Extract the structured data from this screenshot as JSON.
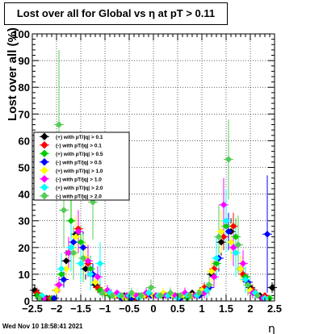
{
  "title": "Lost over all for Global vs    η at pT > 0.11",
  "footer": "Wed Nov 10 18:58:41 2021",
  "chart_data": {
    "type": "scatter",
    "xlabel": "η",
    "ylabel": "Lost over all (%)",
    "xlim": [
      -2.5,
      2.5
    ],
    "ylim": [
      0,
      100
    ],
    "x_ticks": [
      -2.5,
      -2,
      -1.5,
      -1,
      -0.5,
      0,
      0.5,
      1,
      1.5,
      2,
      2.5
    ],
    "x_tick_labels": [
      "−2.5",
      "−2",
      "−1.5",
      "−1",
      "−0.5",
      "0",
      "0.5",
      "1",
      "1.5",
      "2",
      "2.5"
    ],
    "y_ticks": [
      0,
      10,
      20,
      30,
      40,
      50,
      60,
      70,
      80,
      90,
      100
    ],
    "y_tick_labels": [
      "0",
      "10",
      "20",
      "30",
      "40",
      "50",
      "60",
      "70",
      "80",
      "90",
      "100"
    ],
    "grid": true,
    "legend_position": "center-left",
    "series": [
      {
        "name": "(+) with pT/|q| > 0.1",
        "color": "#000000",
        "marker": "diamond",
        "x": [
          -2.45,
          -2.2,
          -2.0,
          -1.8,
          -1.6,
          -1.4,
          -1.2,
          -1.0,
          -0.8,
          -0.6,
          -0.4,
          -0.2,
          0.0,
          0.2,
          0.4,
          0.6,
          0.8,
          1.0,
          1.2,
          1.4,
          1.6,
          1.8,
          2.0,
          2.2,
          2.45
        ],
        "y": [
          4,
          1,
          4,
          15,
          25,
          12,
          6,
          3,
          2,
          2,
          2,
          2,
          2,
          2,
          2,
          2,
          3,
          4,
          10,
          22,
          26,
          12,
          5,
          2,
          5
        ],
        "err": [
          2,
          1,
          2,
          4,
          5,
          4,
          2,
          1,
          1,
          1,
          1,
          1,
          1,
          1,
          1,
          1,
          1,
          2,
          3,
          5,
          5,
          4,
          2,
          1,
          2
        ]
      },
      {
        "name": "(-) with pT/|q| > 0.1",
        "color": "#ff0000",
        "marker": "diamond",
        "x": [
          -2.4,
          -2.15,
          -1.95,
          -1.75,
          -1.55,
          -1.35,
          -1.15,
          -0.95,
          -0.75,
          -0.55,
          -0.35,
          -0.15,
          0.05,
          0.25,
          0.45,
          0.65,
          0.85,
          1.05,
          1.25,
          1.45,
          1.65,
          1.85,
          2.05,
          2.3
        ],
        "y": [
          3,
          1,
          6,
          18,
          27,
          14,
          5,
          3,
          2,
          2,
          1,
          2,
          2,
          2,
          2,
          2,
          2,
          5,
          12,
          24,
          28,
          10,
          4,
          2
        ],
        "err": [
          2,
          1,
          2,
          4,
          5,
          4,
          2,
          1,
          1,
          1,
          1,
          1,
          1,
          1,
          1,
          1,
          1,
          2,
          3,
          5,
          5,
          3,
          2,
          1
        ]
      },
      {
        "name": "(+) with pT/|q| > 0.5",
        "color": "#00cc00",
        "marker": "diamond",
        "x": [
          -2.4,
          -2.1,
          -1.9,
          -1.7,
          -1.5,
          -1.3,
          -1.1,
          -0.9,
          -0.7,
          -0.5,
          -0.3,
          -0.1,
          0.1,
          0.3,
          0.5,
          0.7,
          0.9,
          1.1,
          1.3,
          1.5,
          1.7,
          1.9,
          2.1,
          2.4
        ],
        "y": [
          2,
          1,
          10,
          30,
          22,
          12,
          4,
          2,
          2,
          1,
          2,
          3,
          2,
          2,
          2,
          1,
          2,
          4,
          14,
          28,
          24,
          9,
          3,
          1
        ],
        "err": [
          2,
          1,
          4,
          8,
          6,
          5,
          2,
          1,
          1,
          1,
          1,
          2,
          1,
          1,
          1,
          1,
          1,
          2,
          5,
          8,
          7,
          4,
          2,
          1
        ]
      },
      {
        "name": "(-) with pT/|q| > 0.5",
        "color": "#0000ff",
        "marker": "diamond",
        "x": [
          -2.35,
          -2.05,
          -1.85,
          -1.65,
          -1.45,
          -1.25,
          -1.05,
          -0.85,
          -0.65,
          -0.45,
          -0.25,
          -0.05,
          0.15,
          0.35,
          0.55,
          0.75,
          0.95,
          1.15,
          1.35,
          1.55,
          1.75,
          1.95,
          2.15,
          2.35
        ],
        "y": [
          1,
          1,
          8,
          22,
          20,
          10,
          3,
          2,
          1,
          1,
          2,
          2,
          2,
          2,
          1,
          2,
          2,
          5,
          16,
          26,
          21,
          7,
          2,
          25
        ],
        "err": [
          1,
          1,
          3,
          6,
          6,
          4,
          2,
          1,
          1,
          1,
          1,
          1,
          1,
          1,
          1,
          1,
          1,
          2,
          5,
          7,
          6,
          3,
          1,
          22
        ]
      },
      {
        "name": "(+) with pT/|q| > 1.0",
        "color": "#ffff00",
        "marker": "diamond",
        "x": [
          -2.3,
          -2.0,
          -1.8,
          -1.6,
          -1.4,
          -1.2,
          -1.0,
          -0.8,
          -0.6,
          -0.4,
          -0.2,
          0.0,
          0.2,
          0.4,
          0.6,
          0.8,
          1.0,
          1.2,
          1.4,
          1.6,
          1.8,
          2.0,
          2.3
        ],
        "y": [
          2,
          4,
          12,
          24,
          16,
          7,
          3,
          2,
          1,
          2,
          2,
          2,
          3,
          2,
          2,
          2,
          4,
          11,
          26,
          22,
          12,
          4,
          1
        ],
        "err": [
          1,
          2,
          5,
          8,
          6,
          3,
          2,
          1,
          1,
          1,
          1,
          1,
          2,
          1,
          1,
          1,
          2,
          4,
          8,
          7,
          5,
          2,
          1
        ]
      },
      {
        "name": "(-) with pT/|q| > 1.0",
        "color": "#ff00ff",
        "marker": "diamond",
        "x": [
          -2.25,
          -1.95,
          -1.75,
          -1.55,
          -1.35,
          -1.15,
          -0.95,
          -0.75,
          -0.55,
          -0.35,
          -0.15,
          0.05,
          0.25,
          0.45,
          0.65,
          0.85,
          1.05,
          1.25,
          1.45,
          1.65,
          1.85,
          2.05,
          2.25
        ],
        "y": [
          1,
          6,
          18,
          26,
          15,
          9,
          4,
          3,
          2,
          2,
          3,
          2,
          2,
          2,
          3,
          2,
          3,
          9,
          36,
          20,
          14,
          3,
          1
        ],
        "err": [
          1,
          3,
          6,
          8,
          6,
          4,
          2,
          1,
          1,
          1,
          2,
          1,
          1,
          1,
          2,
          1,
          2,
          4,
          10,
          7,
          5,
          2,
          1
        ]
      },
      {
        "name": "(+) with pT/|q| > 2.0",
        "color": "#00ffff",
        "marker": "diamond",
        "x": [
          -2.3,
          -1.9,
          -1.7,
          -1.5,
          -1.3,
          -1.1,
          -0.9,
          -0.7,
          -0.5,
          -0.3,
          -0.1,
          0.1,
          0.3,
          0.5,
          0.7,
          0.9,
          1.1,
          1.3,
          1.5,
          1.7,
          1.9,
          2.1,
          2.3
        ],
        "y": [
          2,
          12,
          20,
          14,
          10,
          14,
          3,
          2,
          2,
          1,
          3,
          2,
          2,
          1,
          2,
          2,
          4,
          16,
          30,
          18,
          8,
          3,
          1
        ],
        "err": [
          1,
          6,
          9,
          7,
          6,
          8,
          2,
          1,
          1,
          1,
          2,
          1,
          1,
          1,
          1,
          1,
          3,
          8,
          12,
          9,
          5,
          2,
          1
        ]
      },
      {
        "name": "(-) with pT/|q| > 2.0",
        "color": "#55cc55",
        "marker": "diamond",
        "x": [
          -2.35,
          -1.95,
          -1.85,
          -1.65,
          -1.45,
          -1.25,
          -1.05,
          -0.85,
          -0.65,
          -0.45,
          -0.25,
          -0.05,
          0.15,
          0.35,
          0.55,
          0.75,
          0.95,
          1.15,
          1.35,
          1.55,
          1.75,
          1.95,
          2.15
        ],
        "y": [
          1,
          66,
          34,
          18,
          16,
          37,
          3,
          2,
          2,
          3,
          2,
          5,
          2,
          3,
          2,
          2,
          3,
          6,
          24,
          53,
          21,
          6,
          2
        ],
        "err": [
          1,
          28,
          14,
          10,
          9,
          14,
          2,
          1,
          1,
          2,
          1,
          3,
          1,
          2,
          1,
          1,
          2,
          4,
          12,
          15,
          11,
          4,
          1
        ]
      }
    ]
  }
}
